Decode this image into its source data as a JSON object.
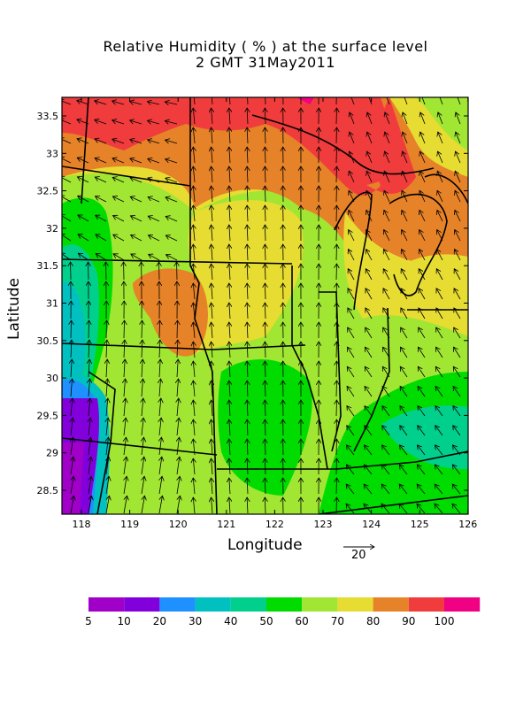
{
  "title": "Relative Humidity ( % ) at the surface level",
  "subtitle": "2 GMT 31May2011",
  "xlabel": "Longitude",
  "ylabel": "Latitude",
  "x_ticks": [
    "118",
    "119",
    "120",
    "121",
    "122",
    "123",
    "124",
    "125",
    "126"
  ],
  "y_ticks": [
    "33.5",
    "33",
    "32.5",
    "32",
    "31.5",
    "31",
    "30.5",
    "30",
    "29.5",
    "29",
    "28.5"
  ],
  "vector_reference": {
    "label": "20",
    "value": 20
  },
  "colorbar": {
    "labels": [
      "5",
      "10",
      "20",
      "30",
      "40",
      "50",
      "60",
      "70",
      "80",
      "90",
      "100"
    ],
    "colors": [
      "#a000c8",
      "#8200dc",
      "#1e90ff",
      "#00c0c0",
      "#00d08c",
      "#00dc00",
      "#a0e632",
      "#e6dc32",
      "#e68228",
      "#f03c3c",
      "#f00082"
    ]
  },
  "field_colors": {
    "rh_50_60": "#00d08c",
    "rh_60_70": "#00dc00",
    "rh_70_80": "#a0e632",
    "rh_80_90": "#e6dc32",
    "rh_90_100": "#e68228",
    "rh_100": "#f03c3c",
    "rh_max": "#f00082",
    "rh_low": "#8200dc",
    "rh_30_40": "#1e90ff",
    "rh_40_50": "#00c0c0"
  }
}
